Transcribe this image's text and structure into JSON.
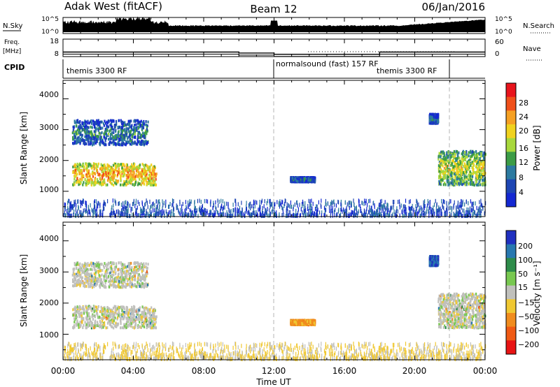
{
  "header": {
    "station": "Adak West (fitACF)",
    "beam": "Beam 12",
    "date": "06/Jan/2016"
  },
  "top_panels": {
    "nsky": {
      "label": "N.Sky",
      "ticks": [
        "10^5",
        "10^0"
      ],
      "right_label": "N.Search",
      "right_ticks": [
        "10^5",
        "10^0"
      ]
    },
    "freq": {
      "label": "Freq.",
      "unit": "[MHz]",
      "ticks": [
        "18",
        "8"
      ],
      "right_label": "Nave",
      "right_ticks": [
        "60",
        "0"
      ]
    },
    "cpid": {
      "label": "CPID",
      "segments": [
        {
          "text": "themis 3300 RF"
        },
        {
          "text": "normalsound (fast) 157 RF"
        },
        {
          "text": "themis 3300 RF"
        }
      ]
    }
  },
  "panels": {
    "power": {
      "ylabel": "Slant Range [km]",
      "yticks": [
        "4000",
        "3000",
        "2000",
        "1000"
      ]
    },
    "velocity": {
      "ylabel": "Slant Range [km]",
      "yticks": [
        "4000",
        "3000",
        "2000",
        "1000"
      ]
    }
  },
  "xaxis": {
    "label": "Time UT",
    "ticks": [
      "00:00",
      "04:00",
      "08:00",
      "12:00",
      "16:00",
      "20:00",
      "00:00"
    ]
  },
  "colorbars": {
    "power": {
      "label": "Power [dB]",
      "ticks": [
        "28",
        "24",
        "20",
        "16",
        "12",
        "8",
        "4"
      ],
      "colors": [
        "#e8141c",
        "#f0501a",
        "#f5a023",
        "#f0d21e",
        "#a8d83c",
        "#3c9c46",
        "#2c7aa0",
        "#1e46b4",
        "#1428d2"
      ]
    },
    "velocity": {
      "label": "Velocity [m s⁻¹]",
      "ticks": [
        "200",
        "100",
        "50",
        "15",
        "−15",
        "−50",
        "−100",
        "−200"
      ],
      "colors": [
        "#2030c0",
        "#2878b0",
        "#2e8c4a",
        "#78c850",
        "#c0c0bc",
        "#f0c832",
        "#f08c1e",
        "#f05a14",
        "#e81414"
      ]
    }
  },
  "chart_data": {
    "type": "heatmap",
    "title": "Adak West (fitACF)",
    "subtitle": "Beam 12",
    "date": "06/Jan/2016",
    "xlabel": "Time UT",
    "ylabel": "Slant Range [km]",
    "x_range_hours": [
      0,
      24
    ],
    "y_range_km": [
      180,
      4600
    ],
    "cpid_change_hours": [
      12,
      21.75
    ],
    "scatter_regions": [
      {
        "hours": [
          0.5,
          5.3
        ],
        "range_km": [
          1200,
          1900
        ],
        "power_db": 22,
        "velocity_ms": 0
      },
      {
        "hours": [
          0.5,
          4.8
        ],
        "range_km": [
          2500,
          3300
        ],
        "power_db": 8,
        "velocity_ms": 0
      },
      {
        "hours": [
          12.9,
          14.3
        ],
        "range_km": [
          1300,
          1450
        ],
        "power_db": 6,
        "velocity_ms": -60
      },
      {
        "hours": [
          21.3,
          24.0
        ],
        "range_km": [
          1200,
          2300
        ],
        "power_db": 16,
        "velocity_ms": 0
      },
      {
        "hours": [
          20.8,
          21.3
        ],
        "range_km": [
          3200,
          3500
        ],
        "power_db": 6,
        "velocity_ms": 200
      },
      {
        "hours": [
          0,
          24
        ],
        "range_km": [
          200,
          700
        ],
        "power_db": 6,
        "velocity_ms": -20
      }
    ],
    "freq_mhz": [
      {
        "hours": [
          0,
          10
        ],
        "value": 10.4
      },
      {
        "hours": [
          10,
          12
        ],
        "value": 9.8
      },
      {
        "hours": [
          12,
          18
        ],
        "value": 9.0
      },
      {
        "hours": [
          18,
          24
        ],
        "value": 10.4
      }
    ]
  }
}
